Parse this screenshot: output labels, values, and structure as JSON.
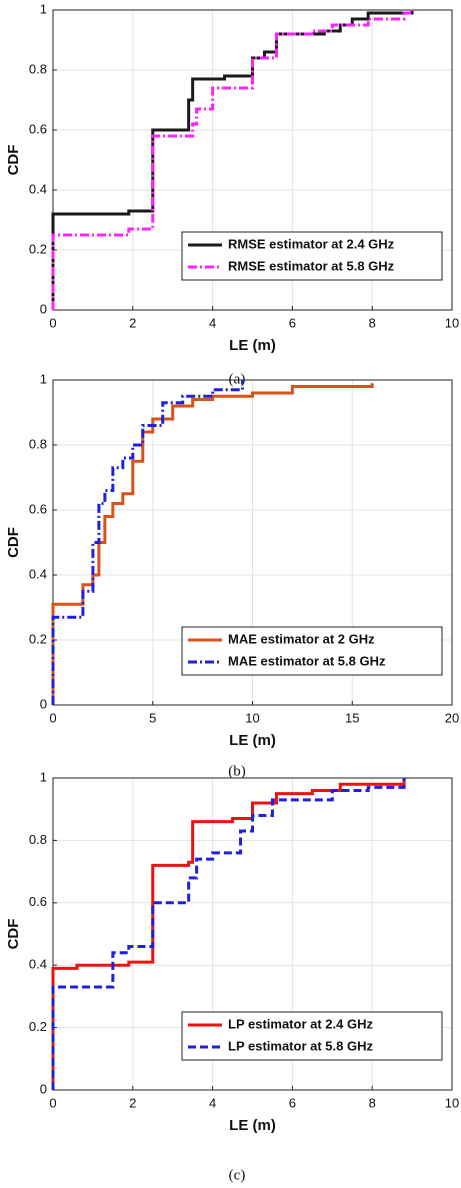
{
  "chart_data": [
    {
      "type": "line",
      "step": true,
      "caption": "(a)",
      "xlabel": "LE (m)",
      "ylabel": "CDF",
      "xlim": [
        0,
        10
      ],
      "ylim": [
        0,
        1
      ],
      "xticks": [
        0,
        2,
        4,
        6,
        8,
        10
      ],
      "yticks": [
        0,
        0.2,
        0.4,
        0.6,
        0.8,
        1
      ],
      "grid": true,
      "legend": "lower right",
      "series": [
        {
          "name": "RMSE estimator at 2.4 GHz",
          "color": "#1a1a1a",
          "linestyle": "solid",
          "x": [
            0,
            0,
            1.9,
            2.5,
            3.4,
            3.5,
            4.3,
            5.0,
            5.3,
            5.6,
            6.8,
            7.2,
            7.5,
            7.9,
            9.0
          ],
          "values": [
            0,
            0.32,
            0.33,
            0.6,
            0.7,
            0.77,
            0.78,
            0.84,
            0.86,
            0.92,
            0.93,
            0.95,
            0.97,
            0.99,
            1.0
          ]
        },
        {
          "name": "RMSE estimator at 5.8 GHz",
          "color": "#ff22ff",
          "linestyle": "dashdot",
          "x": [
            0,
            0,
            1.9,
            2.5,
            3.5,
            3.6,
            4.0,
            5.0,
            5.6,
            6.5,
            7.0,
            7.9,
            8.8,
            9.0
          ],
          "values": [
            0,
            0.25,
            0.27,
            0.58,
            0.62,
            0.67,
            0.74,
            0.84,
            0.92,
            0.93,
            0.95,
            0.97,
            0.99,
            1.0
          ]
        }
      ]
    },
    {
      "type": "line",
      "step": true,
      "caption": "(b)",
      "xlabel": "LE (m)",
      "ylabel": "CDF",
      "xlim": [
        0,
        20
      ],
      "ylim": [
        0,
        1
      ],
      "xticks": [
        0,
        5,
        10,
        15,
        20
      ],
      "yticks": [
        0,
        0.2,
        0.4,
        0.6,
        0.8,
        1
      ],
      "grid": true,
      "legend": "lower right",
      "series": [
        {
          "name": "MAE estimator at 2 GHz",
          "color": "#d95319",
          "linestyle": "solid",
          "x": [
            0,
            0,
            1.5,
            2,
            2.3,
            2.6,
            3,
            3.5,
            4,
            4.5,
            5,
            6,
            7,
            8,
            10,
            12,
            16
          ],
          "values": [
            0,
            0.31,
            0.37,
            0.4,
            0.5,
            0.58,
            0.62,
            0.65,
            0.75,
            0.84,
            0.88,
            0.92,
            0.94,
            0.95,
            0.96,
            0.98,
            0.99
          ]
        },
        {
          "name": "MAE estimator at 5.8 GHz",
          "color": "#1f1fe0",
          "linestyle": "dashdot",
          "x": [
            0,
            0,
            1.5,
            2.0,
            2.3,
            2.6,
            3.0,
            3.5,
            4.0,
            4.5,
            5.5,
            6.5,
            8,
            9.5
          ],
          "values": [
            0,
            0.27,
            0.35,
            0.5,
            0.62,
            0.66,
            0.73,
            0.76,
            0.8,
            0.86,
            0.93,
            0.95,
            0.97,
            1.0
          ]
        }
      ]
    },
    {
      "type": "line",
      "step": true,
      "caption": "(c)",
      "xlabel": "LE (m)",
      "ylabel": "CDF",
      "xlim": [
        0,
        10
      ],
      "ylim": [
        0,
        1
      ],
      "xticks": [
        0,
        2,
        4,
        6,
        8,
        10
      ],
      "yticks": [
        0,
        0.2,
        0.4,
        0.6,
        0.8,
        1
      ],
      "grid": true,
      "legend": "lower right",
      "series": [
        {
          "name": "LP estimator at 2.4 GHz",
          "color": "#ee1111",
          "linestyle": "solid",
          "x": [
            0,
            0,
            0.6,
            1.9,
            2.5,
            3.4,
            3.5,
            4.5,
            5.0,
            5.6,
            6.5,
            7.2,
            8.8
          ],
          "values": [
            0,
            0.39,
            0.4,
            0.41,
            0.72,
            0.73,
            0.86,
            0.87,
            0.92,
            0.95,
            0.96,
            0.98,
            1.0
          ]
        },
        {
          "name": "LP estimator at 5.8 GHz",
          "color": "#1f1fe0",
          "linestyle": "dashed",
          "x": [
            0,
            0,
            1.5,
            1.9,
            2.5,
            3.4,
            3.6,
            4.0,
            4.7,
            5.0,
            5.5,
            7.0,
            7.9,
            8.8
          ],
          "values": [
            0,
            0.33,
            0.44,
            0.46,
            0.6,
            0.68,
            0.74,
            0.76,
            0.83,
            0.88,
            0.93,
            0.96,
            0.97,
            1.0
          ]
        }
      ]
    }
  ]
}
